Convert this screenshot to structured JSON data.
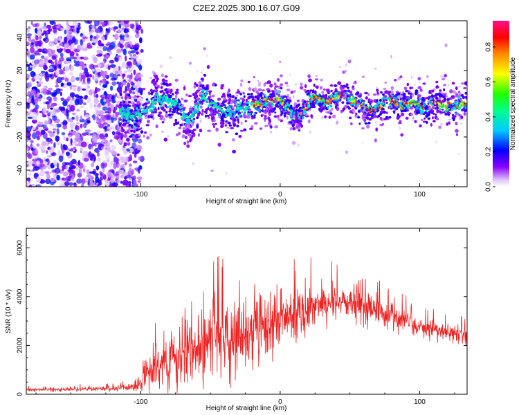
{
  "title": "C2E2.2025.300.16.07.G09",
  "chart_data": [
    {
      "type": "heatmap",
      "xlabel": "Height of straight line (km)",
      "ylabel": "Frequency (Hz)",
      "xlim": [
        -182,
        134
      ],
      "ylim": [
        -50,
        50
      ],
      "xticks": [
        -100,
        0,
        100
      ],
      "yticks": [
        -40,
        -20,
        0,
        20,
        40
      ],
      "noise_region_x": [
        -182,
        -105
      ],
      "ridge": {
        "x": [
          -115,
          -105,
          -95,
          -88,
          -80,
          -72,
          -66,
          -60,
          -55,
          -48,
          -40,
          -30,
          -20,
          -10,
          -5,
          0,
          5,
          10,
          15,
          20,
          25,
          30,
          35,
          40,
          45,
          50,
          55,
          60,
          65,
          70,
          75,
          80,
          85,
          90,
          95,
          100,
          105,
          110,
          115,
          120,
          125,
          130,
          134
        ],
        "freq": [
          -5,
          -8,
          -4,
          3,
          2,
          -2,
          -12,
          -3,
          5,
          -2,
          -5,
          -4,
          -1,
          1,
          2,
          3,
          -2,
          -8,
          -6,
          0,
          4,
          2,
          1,
          4,
          6,
          2,
          1,
          -2,
          -5,
          -2,
          0,
          2,
          -1,
          0,
          1,
          -1,
          -2,
          1,
          0,
          -2,
          -1,
          0,
          0
        ]
      },
      "colorbar": {
        "label": "Normalized spectral amplitude",
        "ticks": [
          "0.0",
          "0.2",
          "0.4",
          "0.6",
          "0.8"
        ],
        "range": [
          0,
          0.95
        ]
      }
    },
    {
      "type": "line",
      "xlabel": "Height of straight line (km)",
      "ylabel": "SNR (10 * v/v)",
      "xlim": [
        -182,
        134
      ],
      "ylim": [
        0,
        6800
      ],
      "xticks": [
        -100,
        0,
        100
      ],
      "yticks": [
        0,
        2000,
        4000,
        6000
      ],
      "series": [
        {
          "name": "SNR",
          "color": "#ee2222",
          "envelope_x": [
            -182,
            -160,
            -140,
            -120,
            -108,
            -100,
            -95,
            -90,
            -80,
            -70,
            -60,
            -50,
            -40,
            -30,
            -20,
            -10,
            0,
            10,
            20,
            30,
            40,
            50,
            60,
            70,
            80,
            90,
            100,
            110,
            120,
            134
          ],
          "envelope_mean": [
            180,
            200,
            220,
            240,
            280,
            420,
            800,
            1100,
            1400,
            1600,
            1900,
            2200,
            2300,
            2400,
            2700,
            2900,
            3000,
            3300,
            3550,
            3750,
            3800,
            3750,
            3650,
            3400,
            3150,
            2950,
            2800,
            2650,
            2550,
            2450
          ],
          "envelope_spread": [
            60,
            70,
            80,
            90,
            120,
            350,
            600,
            900,
            1000,
            1100,
            1300,
            1300,
            1200,
            1300,
            1300,
            1100,
            1100,
            900,
            800,
            700,
            600,
            600,
            600,
            500,
            400,
            400,
            350,
            350,
            300,
            300
          ]
        }
      ]
    }
  ]
}
